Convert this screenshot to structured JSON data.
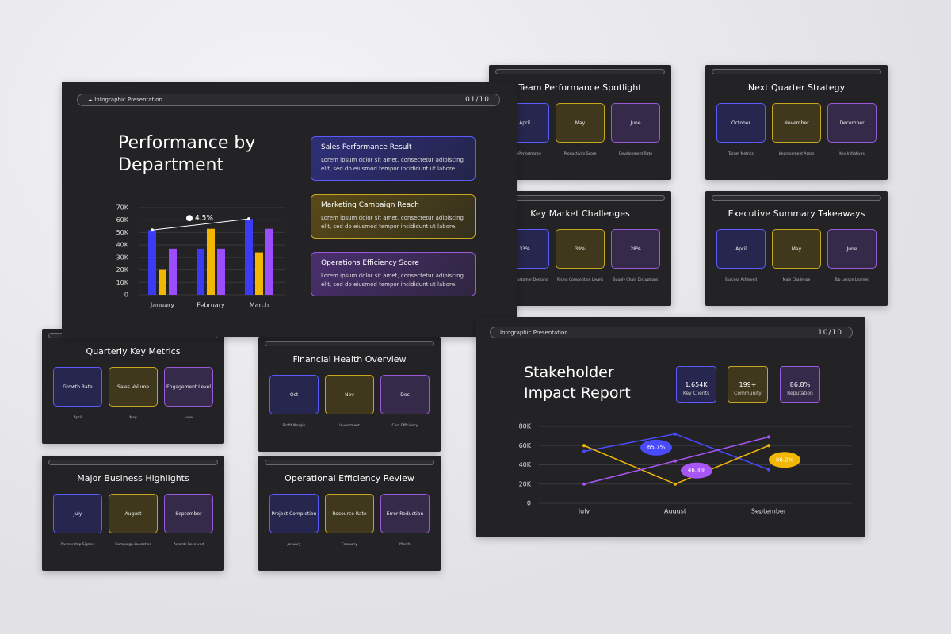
{
  "chart_data": [
    {
      "type": "bar",
      "title": "Performance by Department",
      "categories": [
        "January",
        "February",
        "March"
      ],
      "series": [
        {
          "color": "#3b3bf5",
          "values": [
            52000,
            37000,
            61000
          ]
        },
        {
          "color": "#f2b705",
          "values": [
            20000,
            53000,
            34000
          ]
        },
        {
          "color": "#9b4dff",
          "values": [
            37000,
            37000,
            53000
          ]
        }
      ],
      "ylim": [
        0,
        70000
      ],
      "yticks": [
        0,
        {
          "value": 10000,
          "label": "10K"
        },
        {
          "value": 20000,
          "label": "20K"
        },
        {
          "value": 30000,
          "label": "30K"
        },
        {
          "value": 40000,
          "label": "40K"
        },
        {
          "value": 50000,
          "label": "50K"
        },
        {
          "value": 60000,
          "label": "60K"
        },
        {
          "value": 70000,
          "label": "70K"
        }
      ],
      "grid": true,
      "annotation": "4.5%"
    },
    {
      "type": "line",
      "title": "Stakeholder Impact Report",
      "categories": [
        "July",
        "August",
        "September"
      ],
      "series": [
        {
          "color": "#4a4aff",
          "values": [
            54000,
            72000,
            35000
          ]
        },
        {
          "color": "#f2b705",
          "values": [
            60000,
            20000,
            60000
          ]
        },
        {
          "color": "#a855f7",
          "values": [
            20000,
            44000,
            69000
          ]
        }
      ],
      "ylim": [
        0,
        80000
      ],
      "yticks": [
        0,
        {
          "value": 20000,
          "label": "20K"
        },
        {
          "value": 40000,
          "label": "40K"
        },
        {
          "value": 60000,
          "label": "60K"
        },
        {
          "value": 80000,
          "label": "80K"
        }
      ],
      "grid": true,
      "annotations": [
        "65.7%",
        "46.3%",
        "86.2%"
      ]
    }
  ],
  "slide1": {
    "header": "Infographic Presentation",
    "page": "01/10",
    "cards": [
      {
        "title": "Sales Performance Result",
        "text": "Lorem ipsum dolor sit amet, consectetur adipiscing elit, sed do eiusmod tempor incididunt ut labore."
      },
      {
        "title": "Marketing Campaign Reach",
        "text": "Lorem ipsum dolor sit amet, consectetur adipiscing elit, sed do eiusmod tempor incididunt ut labore."
      },
      {
        "title": "Operations Efficiency Score",
        "text": "Lorem ipsum dolor sit amet, consectetur adipiscing elit, sed do eiusmod tempor incididunt ut labore."
      }
    ]
  },
  "slide10": {
    "header": "Infographic Presentation",
    "page": "10/10",
    "stats": [
      {
        "value": "1.654K",
        "label": "Key Clients"
      },
      {
        "value": "199+",
        "label": "Community"
      },
      {
        "value": "86.8%",
        "label": "Reputation"
      }
    ]
  },
  "slides": [
    {
      "title": "Team Performance Spotlight",
      "items": [
        "April",
        "May",
        "June"
      ],
      "captions": [
        "Team Performance",
        "Productivity Score",
        "Development Rate"
      ]
    },
    {
      "title": "Next Quarter Strategy",
      "items": [
        "October",
        "November",
        "December"
      ],
      "captions": [
        "Target Metrics",
        "Improvement Areas",
        "Key Initiatives"
      ]
    },
    {
      "title": "Key Market Challenges",
      "items": [
        "33%",
        "39%",
        "28%"
      ],
      "captions": [
        "Shift in Customer Demand",
        "Rising Competition Levels",
        "Supply Chain Disruptions"
      ]
    },
    {
      "title": "Executive Summary Takeaways",
      "items": [
        "April",
        "May",
        "June"
      ],
      "captions": [
        "Success Achieved",
        "Main Challenge",
        "Top Lesson Learned"
      ]
    },
    {
      "title": "Quarterly Key Metrics",
      "items": [
        "Growth Rate",
        "Sales Volume",
        "Engagement Level"
      ],
      "captions": [
        "April",
        "May",
        "June"
      ]
    },
    {
      "title": "Financial Health Overview",
      "items": [
        "Oct",
        "Nov",
        "Dec"
      ],
      "captions": [
        "Profit Margin",
        "Investment",
        "Cost Efficiency"
      ]
    },
    {
      "title": "Major Business Highlights",
      "items": [
        "July",
        "August",
        "September"
      ],
      "captions": [
        "Partnership Signed",
        "Campaign Launches",
        "Awards Received"
      ]
    },
    {
      "title": "Operational Efficiency Review",
      "items": [
        "Project Completion",
        "Resource Rate",
        "Error Reduction"
      ],
      "captions": [
        "January",
        "February",
        "March"
      ]
    }
  ]
}
